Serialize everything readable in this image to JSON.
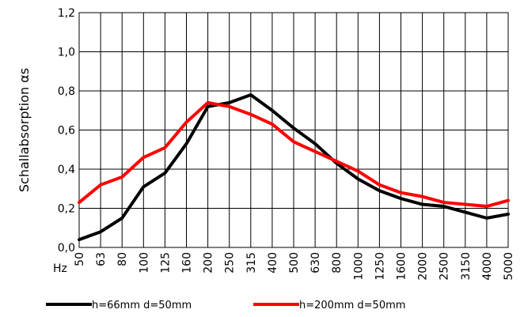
{
  "chart_data": {
    "type": "line",
    "title": "",
    "xlabel": "",
    "x_unit_label": "Hz",
    "ylabel": "Schallabsorption αs",
    "ylim": [
      0,
      1.2
    ],
    "yticks": [
      "0,0",
      "0,2",
      "0,4",
      "0,6",
      "0,8",
      "1,0",
      "1,2"
    ],
    "categories": [
      "50",
      "63",
      "80",
      "100",
      "125",
      "160",
      "200",
      "250",
      "315",
      "400",
      "500",
      "630",
      "800",
      "1000",
      "1250",
      "1600",
      "2000",
      "2500",
      "3150",
      "4000",
      "5000"
    ],
    "grid": true,
    "legend": "bottom",
    "series": [
      {
        "name": "h=66mm d=50mm",
        "color": "#000000",
        "values": [
          0.04,
          0.08,
          0.15,
          0.31,
          0.38,
          0.53,
          0.72,
          0.74,
          0.78,
          0.7,
          0.61,
          0.53,
          0.43,
          0.35,
          0.29,
          0.25,
          0.22,
          0.21,
          0.18,
          0.15,
          0.17
        ]
      },
      {
        "name": "h=200mm d=50mm",
        "color": "#ff0000",
        "values": [
          0.23,
          0.32,
          0.36,
          0.46,
          0.51,
          0.64,
          0.74,
          0.72,
          0.68,
          0.63,
          0.54,
          0.49,
          0.44,
          0.39,
          0.32,
          0.28,
          0.26,
          0.23,
          0.22,
          0.21,
          0.24
        ]
      }
    ]
  }
}
